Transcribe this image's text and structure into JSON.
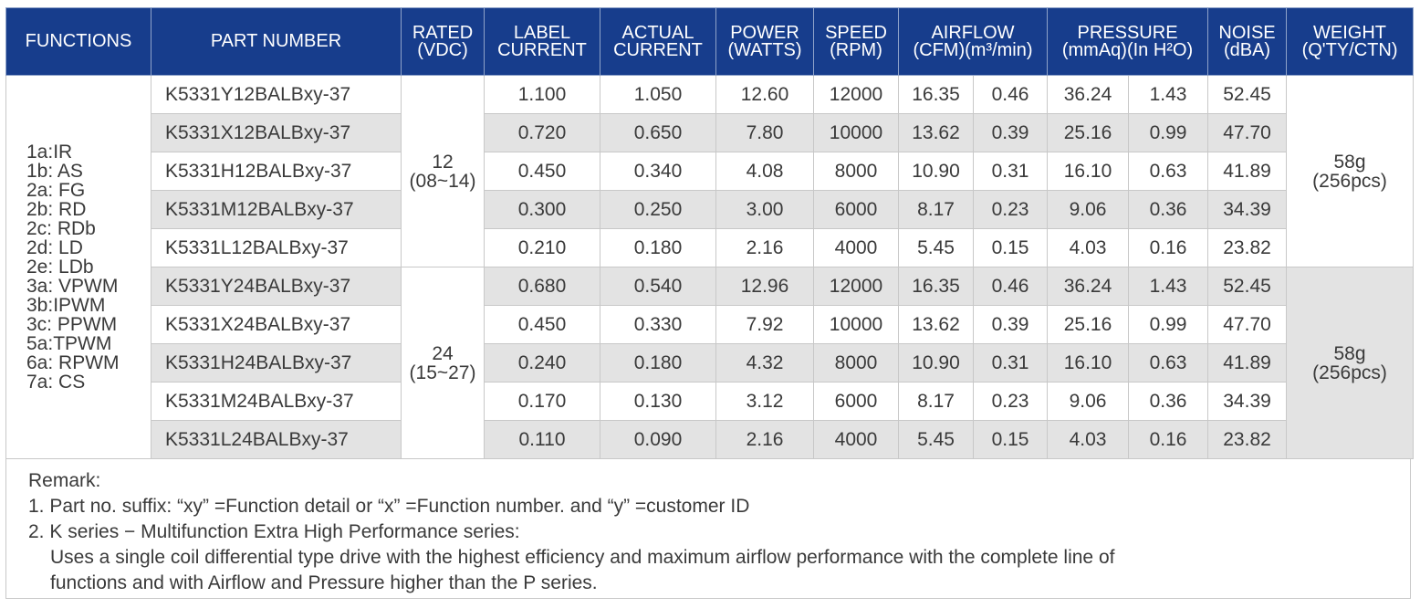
{
  "headers": [
    [
      "FUNCTIONS"
    ],
    [
      "PART NUMBER"
    ],
    [
      "RATED",
      "(VDC)"
    ],
    [
      "LABEL",
      "CURRENT"
    ],
    [
      "ACTUAL",
      "CURRENT"
    ],
    [
      "POWER",
      "(WATTS)"
    ],
    [
      "SPEED",
      "(RPM)"
    ],
    [
      "AIRFLOW",
      "(CFM)(m³/min)"
    ],
    [
      "PRESSURE",
      "(mmAq)(In H²O)"
    ],
    [
      "NOISE",
      "(dBA)"
    ],
    [
      "WEIGHT",
      "(Q'TY/CTN)"
    ]
  ],
  "functions": [
    "1a:IR",
    "1b: AS",
    "2a: FG",
    "2b: RD",
    "2c: RDb",
    "2d: LD",
    "2e: LDb",
    "3a: VPWM",
    "3b:IPWM",
    "3c: PPWM",
    "5a:TPWM",
    "6a: RPWM",
    "7a: CS"
  ],
  "groups": [
    {
      "rated": [
        "12",
        "(08~14)"
      ],
      "weight": [
        "58g",
        "(256pcs)"
      ],
      "rows": [
        {
          "part": "K5331Y12BALBxy-37",
          "label_current": "1.100",
          "actual_current": "1.050",
          "power": "12.60",
          "speed": "12000",
          "cfm": "16.35",
          "m3min": "0.46",
          "mmaq": "36.24",
          "inh2o": "1.43",
          "noise": "52.45"
        },
        {
          "part": "K5331X12BALBxy-37",
          "label_current": "0.720",
          "actual_current": "0.650",
          "power": "7.80",
          "speed": "10000",
          "cfm": "13.62",
          "m3min": "0.39",
          "mmaq": "25.16",
          "inh2o": "0.99",
          "noise": "47.70"
        },
        {
          "part": "K5331H12BALBxy-37",
          "label_current": "0.450",
          "actual_current": "0.340",
          "power": "4.08",
          "speed": "8000",
          "cfm": "10.90",
          "m3min": "0.31",
          "mmaq": "16.10",
          "inh2o": "0.63",
          "noise": "41.89"
        },
        {
          "part": "K5331M12BALBxy-37",
          "label_current": "0.300",
          "actual_current": "0.250",
          "power": "3.00",
          "speed": "6000",
          "cfm": "8.17",
          "m3min": "0.23",
          "mmaq": "9.06",
          "inh2o": "0.36",
          "noise": "34.39"
        },
        {
          "part": "K5331L12BALBxy-37",
          "label_current": "0.210",
          "actual_current": "0.180",
          "power": "2.16",
          "speed": "4000",
          "cfm": "5.45",
          "m3min": "0.15",
          "mmaq": "4.03",
          "inh2o": "0.16",
          "noise": "23.82"
        }
      ]
    },
    {
      "rated": [
        "24",
        "(15~27)"
      ],
      "weight": [
        "58g",
        "(256pcs)"
      ],
      "rows": [
        {
          "part": "K5331Y24BALBxy-37",
          "label_current": "0.680",
          "actual_current": "0.540",
          "power": "12.96",
          "speed": "12000",
          "cfm": "16.35",
          "m3min": "0.46",
          "mmaq": "36.24",
          "inh2o": "1.43",
          "noise": "52.45"
        },
        {
          "part": "K5331X24BALBxy-37",
          "label_current": "0.450",
          "actual_current": "0.330",
          "power": "7.92",
          "speed": "10000",
          "cfm": "13.62",
          "m3min": "0.39",
          "mmaq": "25.16",
          "inh2o": "0.99",
          "noise": "47.70"
        },
        {
          "part": "K5331H24BALBxy-37",
          "label_current": "0.240",
          "actual_current": "0.180",
          "power": "4.32",
          "speed": "8000",
          "cfm": "10.90",
          "m3min": "0.31",
          "mmaq": "16.10",
          "inh2o": "0.63",
          "noise": "41.89"
        },
        {
          "part": "K5331M24BALBxy-37",
          "label_current": "0.170",
          "actual_current": "0.130",
          "power": "3.12",
          "speed": "6000",
          "cfm": "8.17",
          "m3min": "0.23",
          "mmaq": "9.06",
          "inh2o": "0.36",
          "noise": "34.39"
        },
        {
          "part": "K5331L24BALBxy-37",
          "label_current": "0.110",
          "actual_current": "0.090",
          "power": "2.16",
          "speed": "4000",
          "cfm": "5.45",
          "m3min": "0.15",
          "mmaq": "4.03",
          "inh2o": "0.16",
          "noise": "23.82"
        }
      ]
    }
  ],
  "remark": {
    "title": "Remark:",
    "line1": "1. Part no. suffix: “xy” =Function detail or “x” =Function number. and “y” =customer ID",
    "line2": "2. K series − Multifunction Extra High Performance series:",
    "line3": "Uses a single coil differential type drive with the highest efficiency and maximum airflow performance with the complete line of",
    "line4": "functions and with Airflow and Pressure higher than the P series."
  }
}
